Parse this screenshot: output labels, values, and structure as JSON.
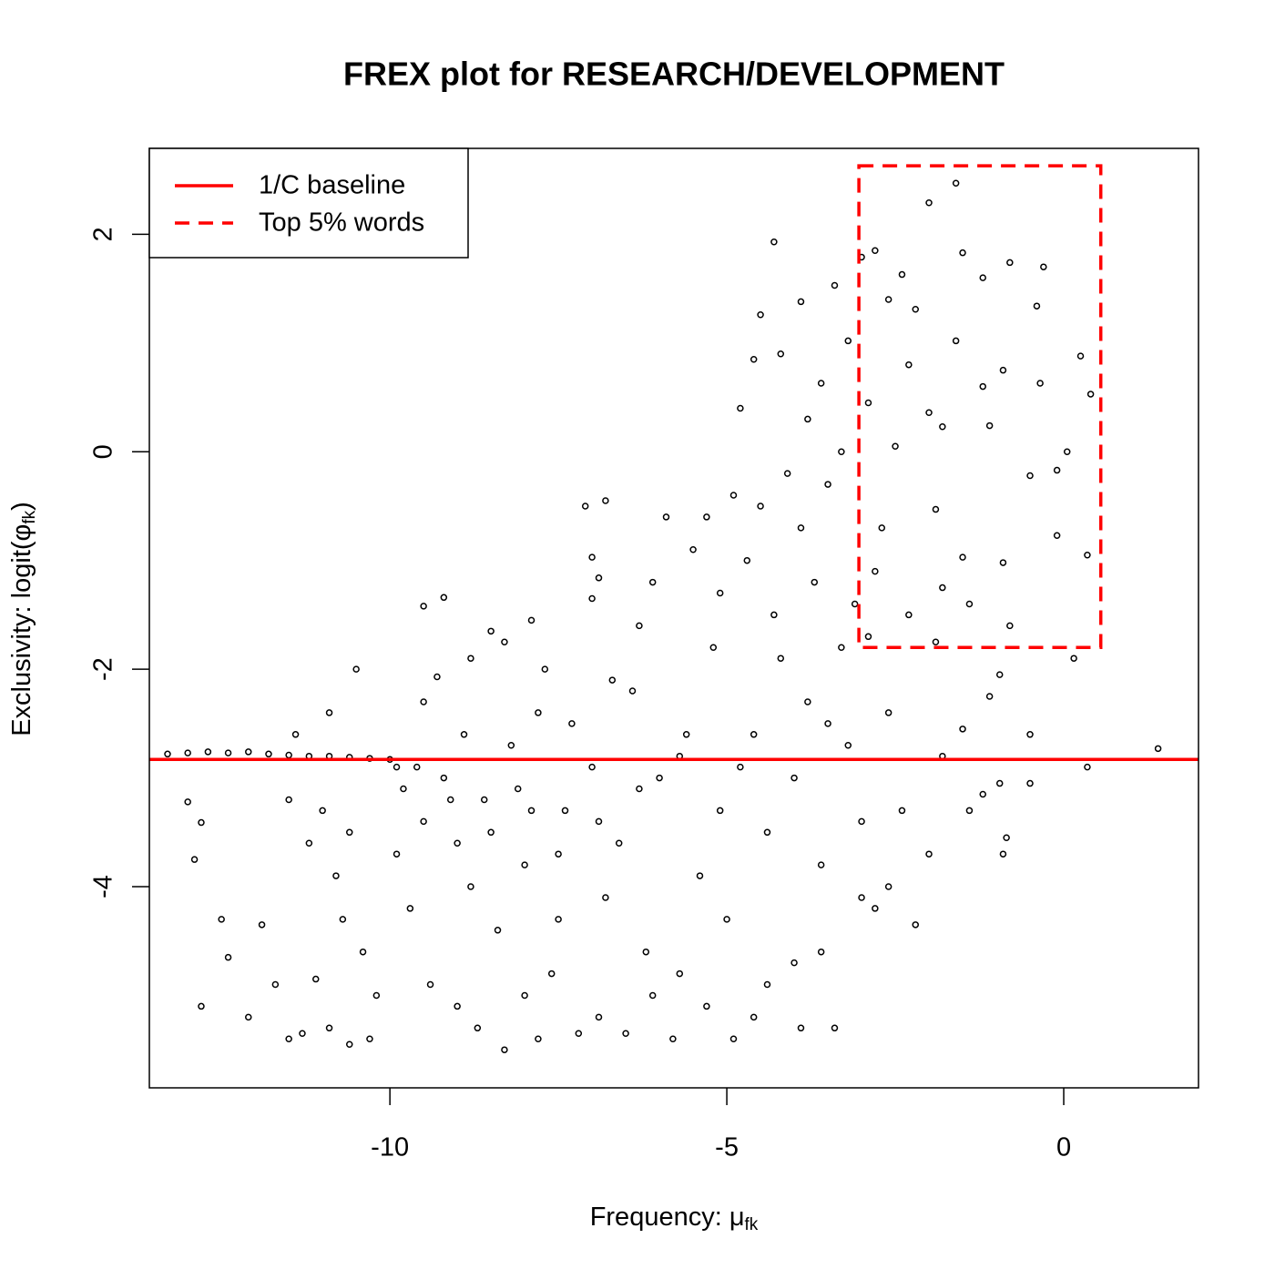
{
  "chart_data": {
    "type": "scatter",
    "title": "FREX plot for RESEARCH/DEVELOPMENT",
    "xlabel_parts": [
      "Frequency: μ",
      "fk"
    ],
    "ylabel_parts": [
      "Exclusivity: logit(φ",
      "fk",
      ")"
    ],
    "xlim": [
      -13.57,
      2.0
    ],
    "ylim": [
      -5.85,
      2.79
    ],
    "xticks": [
      -10,
      -5,
      0
    ],
    "yticks": [
      -4,
      -2,
      0,
      2
    ],
    "color": "#000000",
    "x": [
      -13.3,
      -13.0,
      -12.7,
      -12.4,
      -12.1,
      -11.8,
      -11.5,
      -11.2,
      -10.9,
      -10.6,
      -10.3,
      -10.0,
      -13.0,
      -12.9,
      -12.8,
      -12.5,
      -12.4,
      -12.8,
      -12.1,
      -11.7,
      -11.9,
      -11.5,
      -11.3,
      -11.1,
      -10.9,
      -10.6,
      -10.3,
      -10.9,
      -10.5,
      -11.4,
      -11.5,
      -11.2,
      -10.8,
      -10.7,
      -10.4,
      -10.2,
      -11.0,
      -10.6,
      -9.5,
      -9.2,
      -9.5,
      -9.3,
      -8.8,
      -8.5,
      -8.3,
      -7.9,
      -7.1,
      -6.8,
      -7.0,
      -6.9,
      -7.0,
      -9.8,
      -9.5,
      -9.2,
      -9.0,
      -8.8,
      -8.6,
      -8.4,
      -8.2,
      -8.0,
      -7.8,
      -7.6,
      -7.4,
      -7.2,
      -7.0,
      -6.8,
      -6.6,
      -6.4,
      -6.2,
      -6.0,
      -5.8,
      -5.6,
      -5.4,
      -5.2,
      -5.0,
      -4.8,
      -4.6,
      -4.4,
      -4.2,
      -4.0,
      -3.8,
      -3.6,
      -3.4,
      -3.2,
      -3.0,
      -9.7,
      -9.4,
      -9.0,
      -8.7,
      -8.3,
      -8.0,
      -7.8,
      -7.5,
      -6.9,
      -6.5,
      -6.1,
      -5.7,
      -5.3,
      -4.9,
      -4.4,
      -3.9,
      -3.6,
      -9.9,
      -9.6,
      -8.9,
      -8.1,
      -7.7,
      -7.3,
      -6.7,
      -6.3,
      -6.1,
      -5.9,
      -5.5,
      -5.3,
      -5.1,
      -4.9,
      -4.7,
      -4.5,
      -4.3,
      -4.1,
      -3.9,
      -3.7,
      -3.5,
      -3.3,
      -4.5,
      -4.3,
      -4.2,
      -3.9,
      -3.6,
      -3.4,
      -3.2,
      -3.8,
      -3.3,
      -3.1,
      -4.6,
      -4.8,
      -2.0,
      -1.6,
      -3.0,
      -2.8,
      -2.4,
      -1.5,
      -0.8,
      -0.3,
      -0.4,
      -1.2,
      -2.6,
      -2.2,
      -1.6,
      -2.3,
      -0.9,
      0.25,
      0.4,
      -0.35,
      -1.2,
      -1.1,
      -2.0,
      -2.9,
      -2.5,
      -1.8,
      -0.1,
      -0.5,
      0.05,
      -1.9,
      -2.7,
      -0.1,
      0.35,
      -1.5,
      -0.9,
      -2.8,
      -1.8,
      -1.4,
      -2.3,
      -0.8,
      -2.9,
      -1.9,
      0.15,
      -0.95,
      -1.1,
      -0.5,
      -0.5,
      1.4,
      0.35,
      -1.2,
      -0.85,
      -0.9,
      -1.5,
      -2.0,
      -2.2,
      -2.6,
      -2.8,
      -1.8,
      -2.4,
      -2.6,
      -3.0,
      -1.4,
      -0.95,
      -9.9,
      -9.1,
      -8.5,
      -7.9,
      -7.5,
      -6.9,
      -6.3,
      -5.7,
      -5.1,
      -4.6,
      -4.0,
      -3.5
    ],
    "values": [
      -2.78,
      -2.77,
      -2.76,
      -2.77,
      -2.76,
      -2.78,
      -2.79,
      -2.8,
      -2.8,
      -2.81,
      -2.82,
      -2.83,
      -3.22,
      -3.75,
      -3.41,
      -4.3,
      -4.65,
      -5.1,
      -5.2,
      -4.9,
      -4.35,
      -5.4,
      -5.35,
      -4.85,
      -5.3,
      -5.45,
      -5.4,
      -2.4,
      -2.0,
      -2.6,
      -3.2,
      -3.6,
      -3.9,
      -4.3,
      -4.6,
      -5.0,
      -3.3,
      -3.5,
      -1.42,
      -1.34,
      -2.3,
      -2.07,
      -1.9,
      -1.65,
      -1.75,
      -1.55,
      -0.5,
      -0.45,
      -0.97,
      -1.16,
      -1.35,
      -3.1,
      -3.4,
      -3.0,
      -3.6,
      -4.0,
      -3.2,
      -4.4,
      -2.7,
      -3.8,
      -2.4,
      -4.8,
      -3.3,
      -5.35,
      -2.9,
      -4.1,
      -3.6,
      -2.2,
      -4.6,
      -3.0,
      -5.4,
      -2.6,
      -3.9,
      -1.8,
      -4.3,
      -2.9,
      -5.2,
      -3.5,
      -1.9,
      -4.7,
      -2.3,
      -3.8,
      -5.3,
      -2.7,
      -4.1,
      -4.2,
      -4.9,
      -5.1,
      -5.3,
      -5.5,
      -5.0,
      -5.4,
      -4.3,
      -5.2,
      -5.35,
      -5.0,
      -4.8,
      -5.1,
      -5.4,
      -4.9,
      -5.3,
      -4.6,
      -3.7,
      -2.9,
      -2.6,
      -3.1,
      -2.0,
      -2.5,
      -2.1,
      -1.6,
      -1.2,
      -0.6,
      -0.9,
      -0.6,
      -1.3,
      -0.4,
      -1.0,
      -0.5,
      -1.5,
      -0.2,
      -0.7,
      -1.2,
      -0.3,
      -1.8,
      1.26,
      1.93,
      0.9,
      1.38,
      0.63,
      1.53,
      1.02,
      0.3,
      0.0,
      -1.4,
      0.85,
      0.4,
      2.29,
      2.47,
      1.79,
      1.85,
      1.63,
      1.83,
      1.74,
      1.7,
      1.34,
      1.6,
      1.4,
      1.31,
      1.02,
      0.8,
      0.75,
      0.88,
      0.53,
      0.63,
      0.6,
      0.24,
      0.36,
      0.45,
      0.05,
      0.23,
      -0.17,
      -0.22,
      0.0,
      -0.53,
      -0.7,
      -0.77,
      -0.95,
      -0.97,
      -1.02,
      -1.1,
      -1.25,
      -1.4,
      -1.5,
      -1.6,
      -1.7,
      -1.75,
      -1.9,
      -2.05,
      -2.25,
      -2.6,
      -3.05,
      -2.73,
      -2.9,
      -3.15,
      -3.55,
      -3.7,
      -2.55,
      -3.7,
      -4.35,
      -4.0,
      -4.2,
      -2.8,
      -3.3,
      -2.4,
      -3.4,
      -3.3,
      -3.05,
      -2.9,
      -3.2,
      -3.5,
      -3.3,
      -3.7,
      -3.4,
      -3.1,
      -2.8,
      -3.3,
      -2.6,
      -3.0,
      -2.5
    ],
    "baseline": {
      "name": "1/C baseline",
      "y": -2.83,
      "color": "#ff0000"
    },
    "top_box": {
      "name": "Top 5% words",
      "xlim": [
        -3.04,
        0.55
      ],
      "ylim": [
        -1.8,
        2.63
      ],
      "color": "#ff0000"
    },
    "legend": "top-left"
  }
}
